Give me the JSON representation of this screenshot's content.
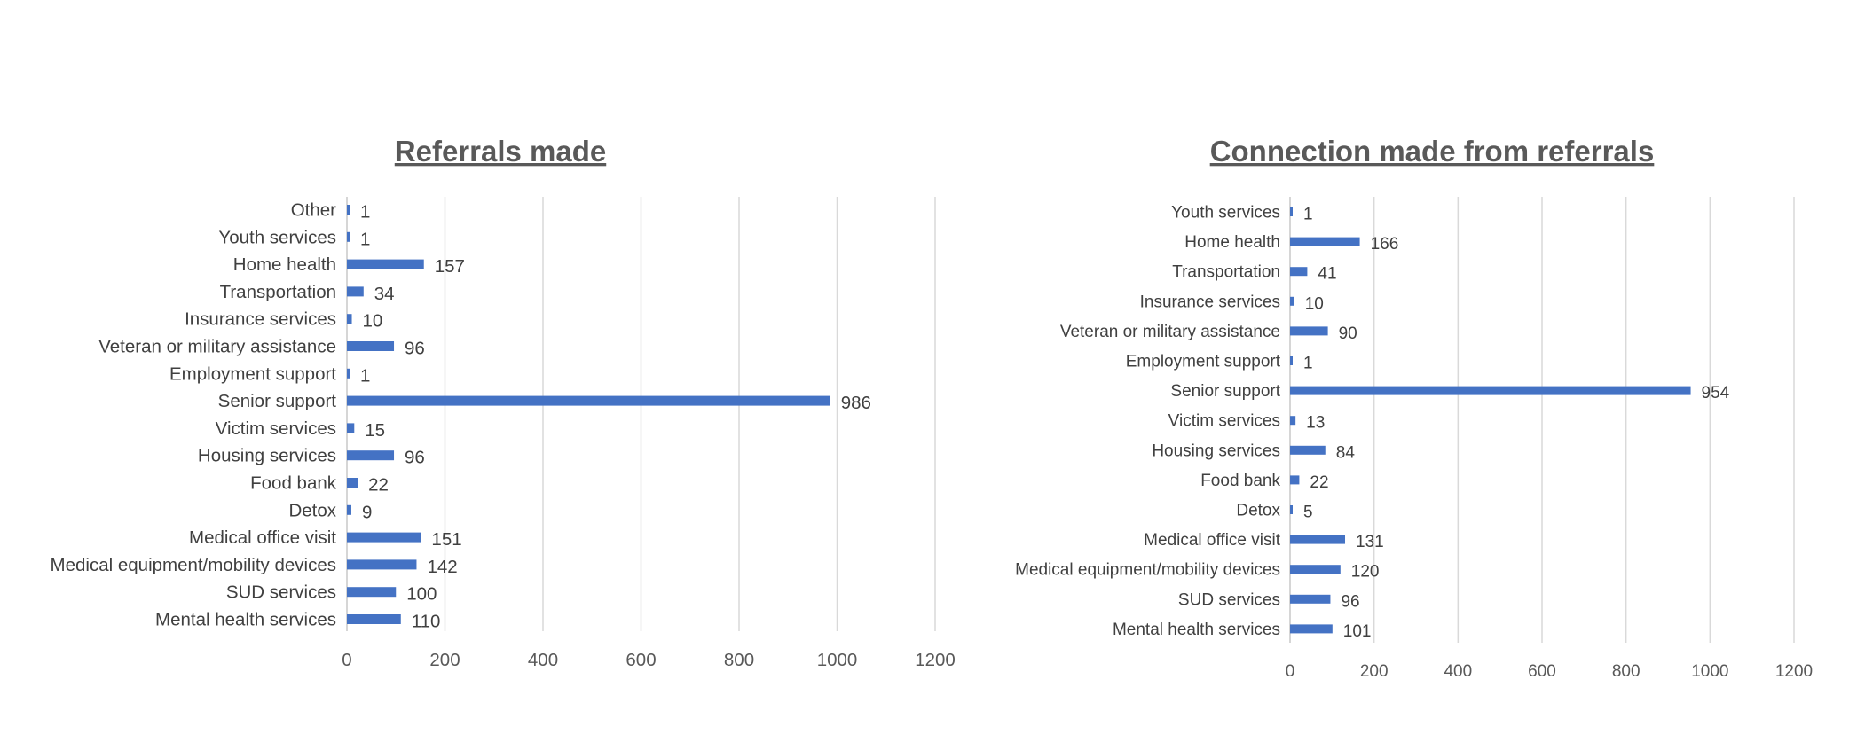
{
  "chart_data": [
    {
      "type": "bar",
      "orientation": "horizontal",
      "title": "Referrals made",
      "categories": [
        "Other",
        "Youth services",
        "Home health",
        "Transportation",
        "Insurance services",
        "Veteran or military assistance",
        "Employment support",
        "Senior support",
        "Victim services",
        "Housing services",
        "Food bank",
        "Detox",
        "Medical office visit",
        "Medical equipment/mobility devices",
        "SUD services",
        "Mental health services"
      ],
      "values": [
        1,
        1,
        157,
        34,
        10,
        96,
        1,
        986,
        15,
        96,
        22,
        9,
        151,
        142,
        100,
        110
      ],
      "xlim": [
        0,
        1200
      ],
      "xticks": [
        0,
        200,
        400,
        600,
        800,
        1000,
        1200
      ],
      "grid": true,
      "bar_color": "#4472C4",
      "data_labels": true
    },
    {
      "type": "bar",
      "orientation": "horizontal",
      "title": "Connection made from referrals",
      "categories": [
        "Youth services",
        "Home health",
        "Transportation",
        "Insurance services",
        "Veteran or military assistance",
        "Employment support",
        "Senior support",
        "Victim services",
        "Housing services",
        "Food bank",
        "Detox",
        "Medical office visit",
        "Medical equipment/mobility devices",
        "SUD services",
        "Mental health services"
      ],
      "values": [
        1,
        166,
        41,
        10,
        90,
        1,
        954,
        13,
        84,
        22,
        5,
        131,
        120,
        96,
        101
      ],
      "xlim": [
        0,
        1200
      ],
      "xticks": [
        0,
        200,
        400,
        600,
        800,
        1000,
        1200
      ],
      "grid": true,
      "bar_color": "#4472C4",
      "data_labels": true
    }
  ]
}
